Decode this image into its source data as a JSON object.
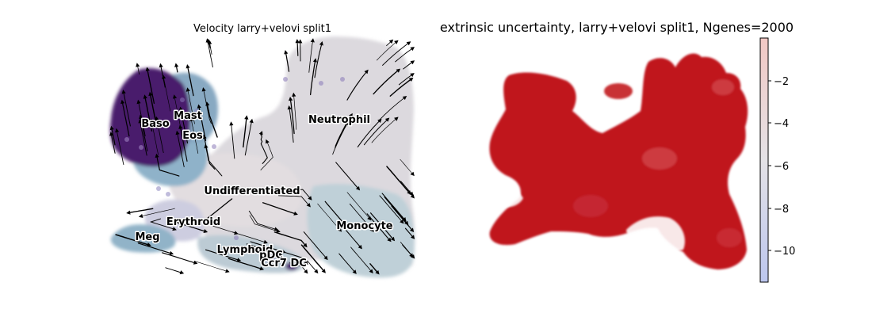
{
  "chart_data": [
    {
      "type": "scatter",
      "subtype": "umap-velocity-stream",
      "title": "Velocity larry+velovi split1",
      "axes": "off",
      "colors": {
        "Baso": "#4a1a6e",
        "Mast": "#7b6aa8",
        "Eos": "#8fb2c9",
        "Neutrophil": "#dddbe0",
        "Undifferentiated": "#ded9dc",
        "Monocyte": "#b8cdd6",
        "Erythroid": "#c7c8dc",
        "Meg": "#8fb2c9",
        "Lymphoid": "#b6c8d2",
        "pDC": "#6f5ba3",
        "Ccr7_DC": "#4a1a6e"
      },
      "cluster_labels": [
        {
          "label": "Baso"
        },
        {
          "label": "Mast"
        },
        {
          "label": "Eos"
        },
        {
          "label": "Neutrophil"
        },
        {
          "label": "Undifferentiated"
        },
        {
          "label": "Erythroid"
        },
        {
          "label": "Monocyte"
        },
        {
          "label": "Meg"
        },
        {
          "label": "Lymphoid"
        },
        {
          "label": "pDC"
        },
        {
          "label": "Ccr7_DC"
        }
      ]
    },
    {
      "type": "scatter",
      "subtype": "umap-continuous",
      "title": "extrinsic uncertainty, larry+velovi split1, Ngenes=2000",
      "axes": "off",
      "colormap": "coolwarm",
      "colorbar": {
        "range": [
          -11.5,
          -0.1
        ],
        "ticks": [
          "−2",
          "−4",
          "−6",
          "−8",
          "−10"
        ],
        "tick_values": [
          -2,
          -4,
          -6,
          -8,
          -10
        ],
        "position": "right"
      },
      "dominant_value": -0.5,
      "point_color": "#c01025"
    }
  ]
}
